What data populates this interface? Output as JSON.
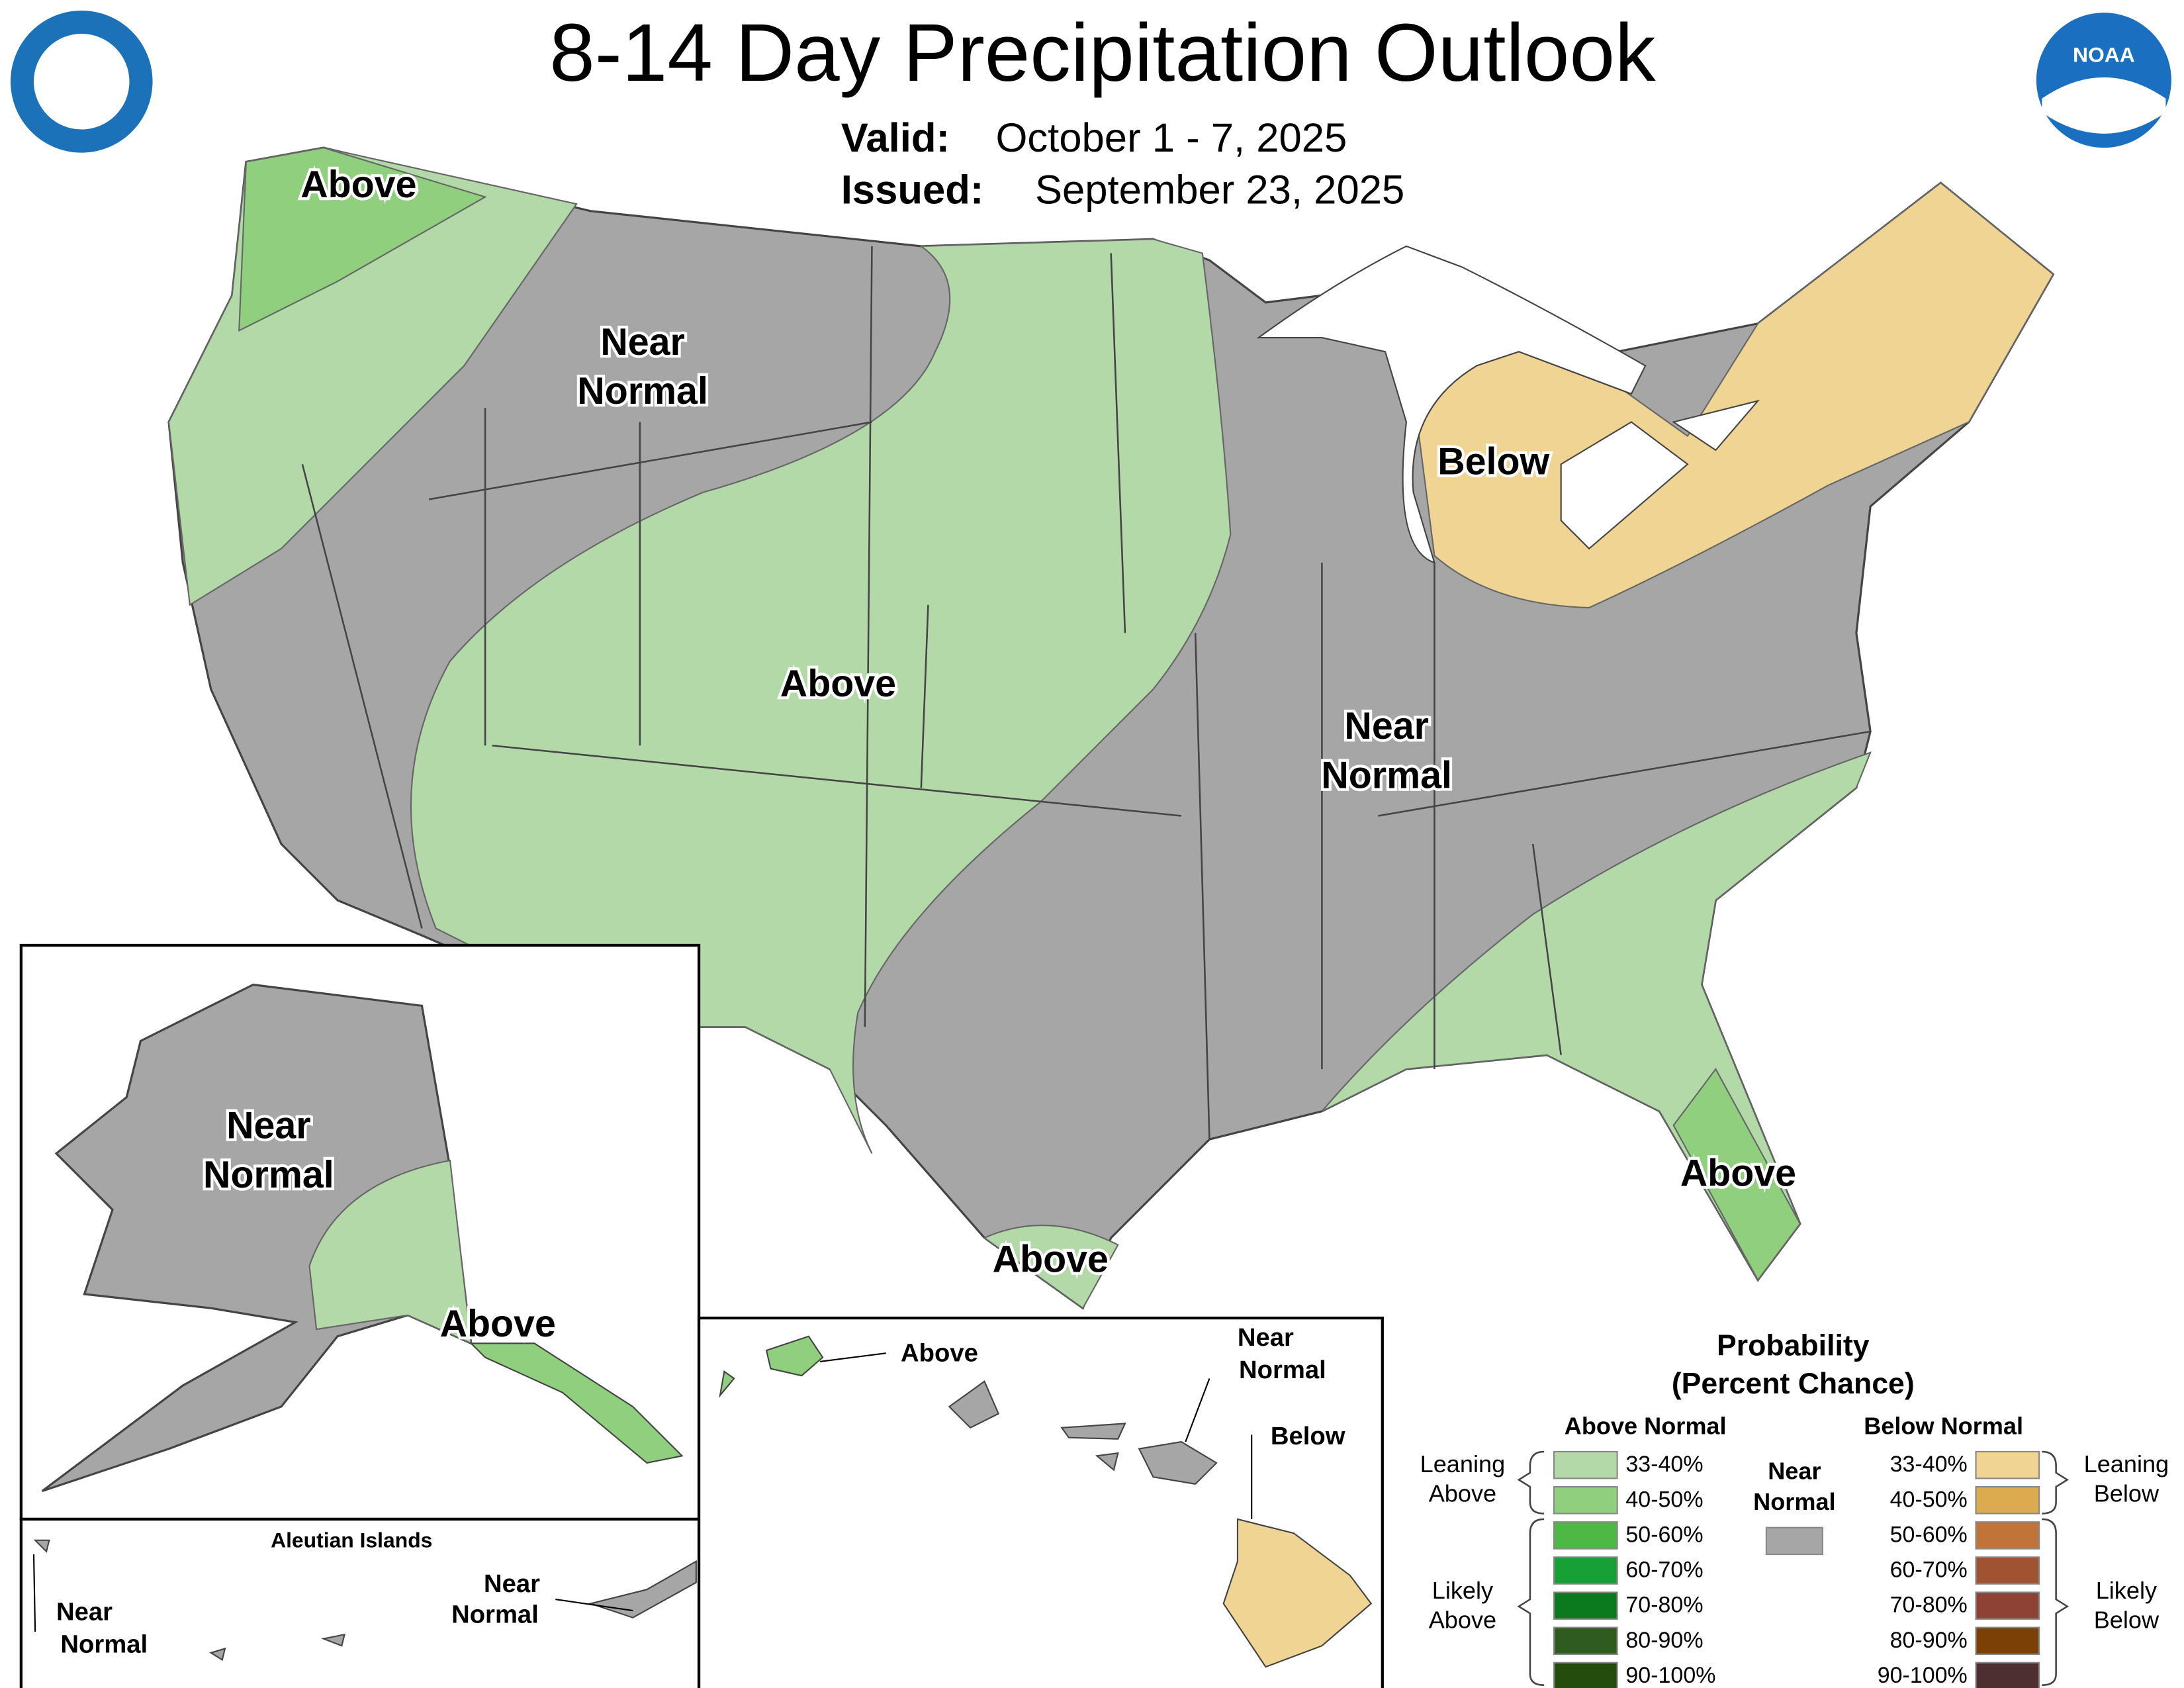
{
  "header": {
    "title": "8-14 Day Precipitation Outlook",
    "valid_label": "Valid:",
    "valid": "October 1 - 7, 2025",
    "issued_label": "Issued:",
    "issued": "September 23, 2025",
    "noaa_logo": "NOAA"
  },
  "conus_labels": [
    [
      "Above"
    ],
    [
      "Near",
      "Normal"
    ],
    [
      "Below"
    ],
    [
      "Above"
    ],
    [
      "Near",
      "Normal"
    ],
    [
      "Above"
    ],
    [
      "Above"
    ]
  ],
  "alaska": {
    "labels": [
      [
        "Near",
        "Normal"
      ],
      [
        "Above"
      ]
    ]
  },
  "aleutian": {
    "title": "Aleutian Islands",
    "labels": [
      [
        "Near",
        "Normal"
      ],
      [
        "Near",
        "Normal"
      ]
    ]
  },
  "hawaii": {
    "labels": [
      [
        "Above"
      ],
      [
        "Near",
        "Normal"
      ],
      [
        "Below"
      ]
    ]
  },
  "legend": {
    "title": [
      "Probability",
      "(Percent Chance)"
    ],
    "above": {
      "header": "Above Normal",
      "items": [
        {
          "label": "33-40%",
          "color": "#b3d9a9"
        },
        {
          "label": "40-50%",
          "color": "#8fcf7e"
        },
        {
          "label": "50-60%",
          "color": "#4db843"
        },
        {
          "label": "60-70%",
          "color": "#16a035"
        },
        {
          "label": "70-80%",
          "color": "#0b7a1f"
        },
        {
          "label": "80-90%",
          "color": "#2f5b1e"
        },
        {
          "label": "90-100%",
          "color": "#244c0c"
        }
      ]
    },
    "below": {
      "header": "Below Normal",
      "items": [
        {
          "label": "33-40%",
          "color": "#f0d494"
        },
        {
          "label": "40-50%",
          "color": "#ddab4f"
        },
        {
          "label": "50-60%",
          "color": "#c0743a"
        },
        {
          "label": "60-70%",
          "color": "#a05331"
        },
        {
          "label": "70-80%",
          "color": "#8e4236"
        },
        {
          "label": "80-90%",
          "color": "#7b4006"
        },
        {
          "label": "90-100%",
          "color": "#4e2f31"
        }
      ]
    },
    "near": {
      "label": [
        "Near",
        "Normal"
      ],
      "color": "#a6a6a6"
    },
    "groups": {
      "leaning_above": [
        "Leaning",
        "Above"
      ],
      "likely_above": [
        "Likely",
        "Above"
      ],
      "leaning_below": [
        "Leaning",
        "Below"
      ],
      "likely_below": [
        "Likely",
        "Below"
      ]
    }
  }
}
